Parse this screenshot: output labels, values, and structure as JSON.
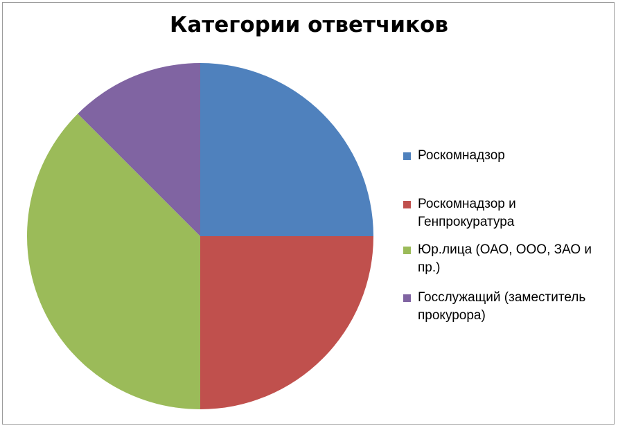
{
  "chart_data": {
    "type": "pie",
    "title": "Категории ответчиков",
    "legend_position": "right",
    "start_angle_deg": 0,
    "direction": "clockwise",
    "slices": [
      {
        "label": "Роскомнадзор",
        "value": 25,
        "color": "#4F81BD"
      },
      {
        "label": "Роскомнадзор и Генпрокуратура",
        "value": 25,
        "color": "#C0504D"
      },
      {
        "label": "Юр.лица (ОАО, ООО, ЗАО и пр.)",
        "value": 37.5,
        "color": "#9BBB59"
      },
      {
        "label": "Госслужащий (заместитель прокурора)",
        "value": 12.5,
        "color": "#8064A2"
      }
    ]
  }
}
